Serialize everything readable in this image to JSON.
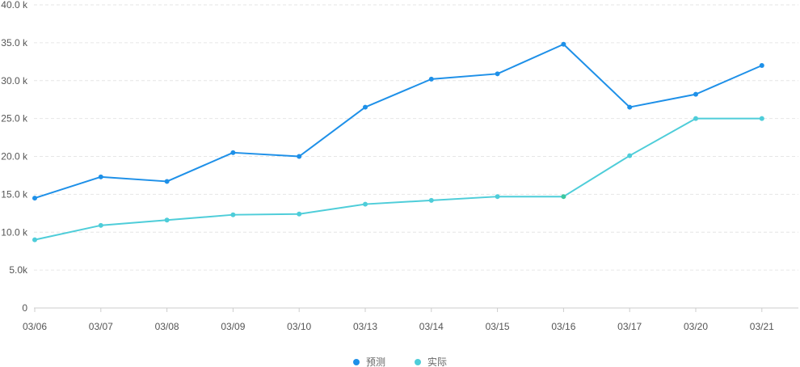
{
  "chart_data": {
    "type": "line",
    "title": "",
    "xlabel": "",
    "ylabel": "",
    "categories": [
      "03/06",
      "03/07",
      "03/08",
      "03/09",
      "03/10",
      "03/13",
      "03/14",
      "03/15",
      "03/16",
      "03/17",
      "03/20",
      "03/21"
    ],
    "series": [
      {
        "name": "预测",
        "color": "#1e90e8",
        "values": [
          14500,
          17300,
          16700,
          20500,
          20000,
          26500,
          30200,
          30900,
          34800,
          26500,
          28200,
          32000
        ]
      },
      {
        "name": "实际",
        "color": "#4ecdd9",
        "values": [
          9000,
          10900,
          11600,
          12300,
          12400,
          13700,
          14200,
          14700,
          14700,
          20100,
          25000,
          25000
        ]
      }
    ],
    "ylim": [
      0,
      40000
    ],
    "yticks": [
      {
        "value": 0,
        "label": "0"
      },
      {
        "value": 5000,
        "label": "5.0k"
      },
      {
        "value": 10000,
        "label": "10.0 k"
      },
      {
        "value": 15000,
        "label": "15.0 k"
      },
      {
        "value": 20000,
        "label": "20.0 k"
      },
      {
        "value": 25000,
        "label": "25.0 k"
      },
      {
        "value": 30000,
        "label": "30.0 k"
      },
      {
        "value": 35000,
        "label": "35.0 k"
      },
      {
        "value": 40000,
        "label": "40.0 k"
      }
    ],
    "grid": true,
    "legend_position": "bottom-center",
    "highlight_point": {
      "series": "实际",
      "category": "03/16",
      "color": "#3cc7a0"
    }
  }
}
